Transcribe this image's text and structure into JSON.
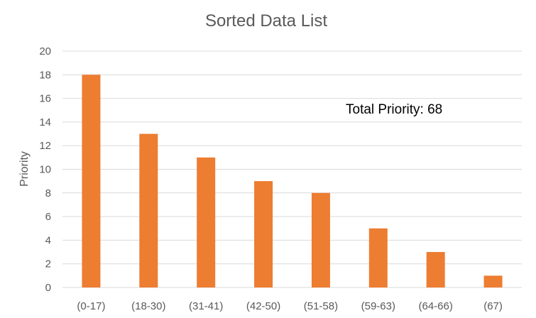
{
  "chart_data": {
    "type": "bar",
    "title": "Sorted Data List",
    "xlabel": "",
    "ylabel": "Priority",
    "categories": [
      "(0-17)",
      "(18-30)",
      "(31-41)",
      "(42-50)",
      "(51-58)",
      "(59-63)",
      "(64-66)",
      "(67)"
    ],
    "values": [
      18,
      13,
      11,
      9,
      8,
      5,
      3,
      1
    ],
    "ylim": [
      0,
      20
    ],
    "yticks": [
      0,
      2,
      4,
      6,
      8,
      10,
      12,
      14,
      16,
      18,
      20
    ],
    "grid": true,
    "legend": "none",
    "annotation": "Total Priority: 68",
    "colors": {
      "bar": "#ED7D31",
      "grid": "#D9D9D9",
      "text": "#595959"
    }
  }
}
